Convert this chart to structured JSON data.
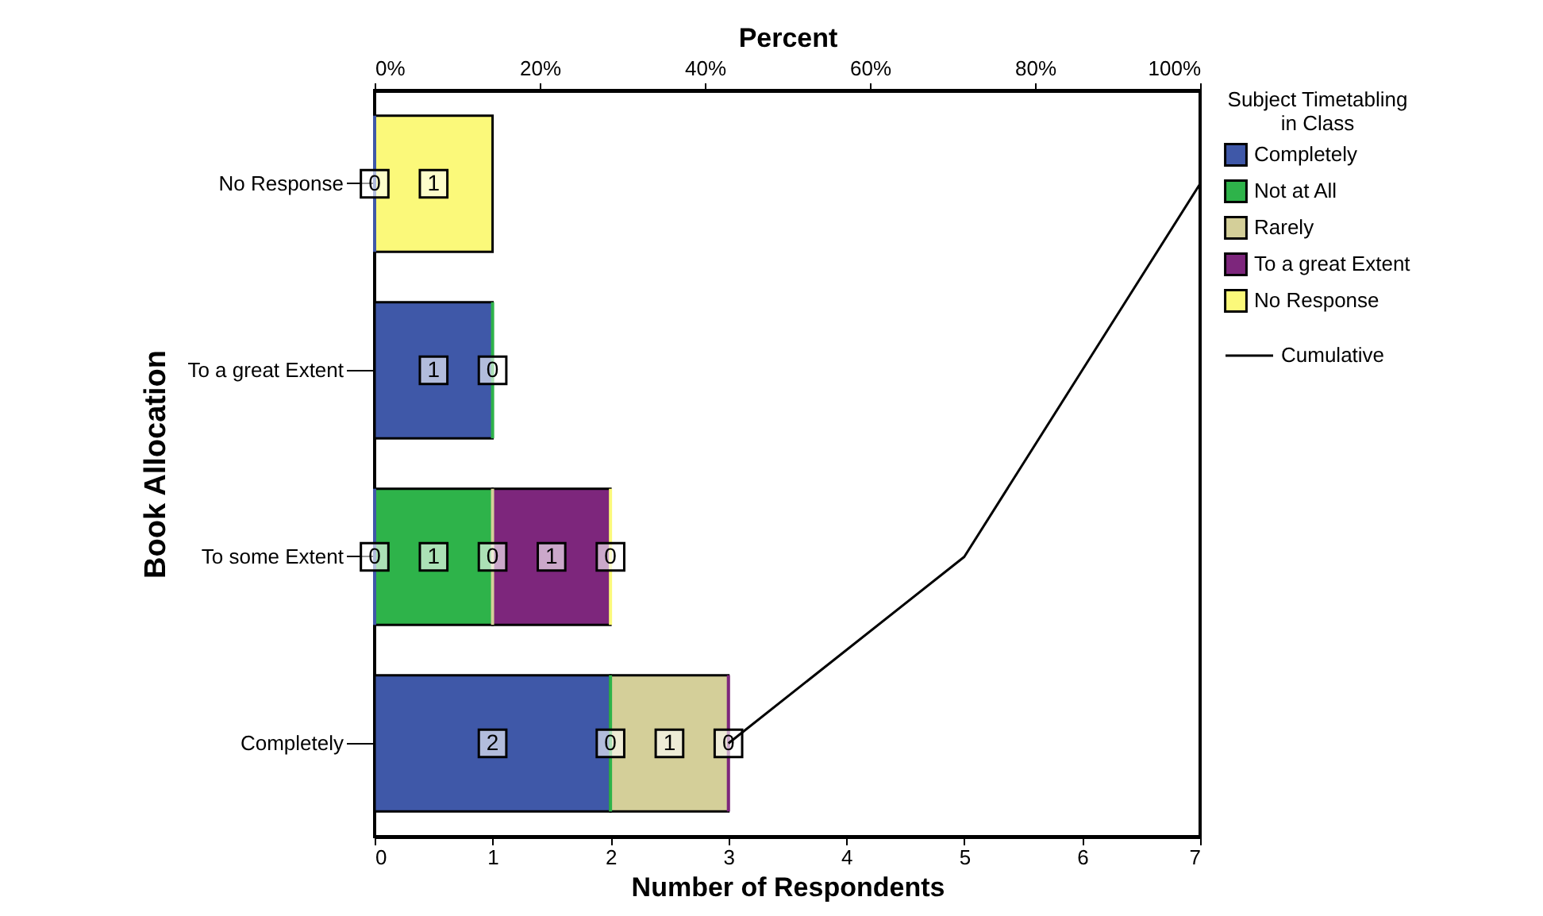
{
  "chart_data": {
    "type": "bar",
    "orientation": "horizontal",
    "stacked": true,
    "xlabel": "Number of Respondents",
    "ylabel": "Book Allocation",
    "x2label": "Percent",
    "legend_title": "Subject Timetabling in Class",
    "categories": [
      "No Response",
      "To a great Extent",
      "To some Extent",
      "Completely"
    ],
    "xlim": [
      0,
      7
    ],
    "xticks": [
      0,
      1,
      2,
      3,
      4,
      5,
      6,
      7
    ],
    "x2lim": [
      0,
      100
    ],
    "x2ticks": [
      {
        "value": 0,
        "label": "0%"
      },
      {
        "value": 20,
        "label": "20%"
      },
      {
        "value": 40,
        "label": "40%"
      },
      {
        "value": 60,
        "label": "60%"
      },
      {
        "value": 80,
        "label": "80%"
      },
      {
        "value": 100,
        "label": "100%"
      }
    ],
    "series": [
      {
        "name": "Completely",
        "color": "#3f58a8",
        "values": [
          0,
          1,
          0,
          2
        ],
        "value_labels": [
          "0",
          "1",
          "0",
          "2"
        ]
      },
      {
        "name": "Not at All",
        "color": "#2eb34a",
        "values": [
          null,
          0,
          1,
          0
        ],
        "value_labels": [
          null,
          "0",
          "1",
          "0"
        ]
      },
      {
        "name": "Rarely",
        "color": "#d4cf99",
        "values": [
          null,
          null,
          0,
          1
        ],
        "value_labels": [
          null,
          null,
          "0",
          "1"
        ]
      },
      {
        "name": "To a great Extent",
        "color": "#7d267c",
        "values": [
          null,
          null,
          1,
          0
        ],
        "value_labels": [
          null,
          null,
          "1",
          "0"
        ]
      },
      {
        "name": "No Response",
        "color": "#fbf97a",
        "values": [
          1,
          null,
          0,
          null
        ],
        "value_labels": [
          "1",
          null,
          "0",
          null
        ]
      },
      {
        "name": "Cumulative",
        "type": "line",
        "color": "#000000",
        "values": [
          7,
          6,
          5,
          3
        ]
      }
    ],
    "legend": "top right",
    "grid": false
  }
}
